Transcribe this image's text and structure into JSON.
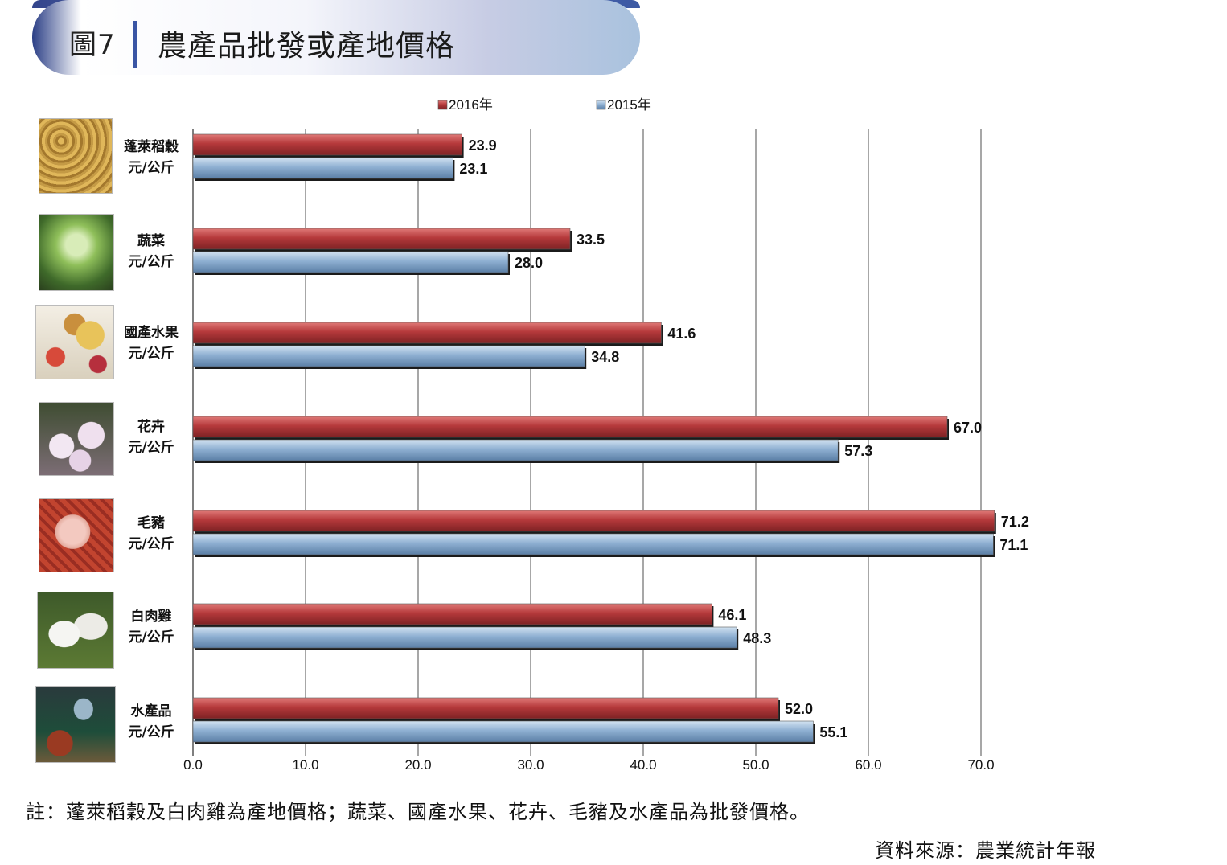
{
  "header": {
    "figure_number": "圖7",
    "title": "農產品批發或產地價格"
  },
  "note": "註：蓬萊稻穀及白肉雞為產地價格；蔬菜、國產水果、花卉、毛豬及水產品為批發價格。",
  "source": "資料來源：農業統計年報",
  "colors": {
    "series_2016": "#b5393b",
    "series_2015": "#8fb0d2",
    "grid": "#8a8a8a"
  },
  "chart_data": {
    "type": "bar",
    "orientation": "horizontal",
    "categories": [
      "蓬萊稻穀",
      "蔬菜",
      "國產水果",
      "花卉",
      "毛豬",
      "白肉雞",
      "水產品"
    ],
    "unit_labels": [
      "元/公斤",
      "元/公斤",
      "元/公斤",
      "元/公斤",
      "元/公斤",
      "元/公斤",
      "元/公斤"
    ],
    "series": [
      {
        "name": "2016年",
        "values": [
          23.9,
          33.5,
          41.6,
          67.0,
          71.2,
          46.1,
          52.0
        ]
      },
      {
        "name": "2015年",
        "values": [
          23.1,
          28.0,
          34.8,
          57.3,
          71.1,
          48.3,
          55.1
        ]
      }
    ],
    "xlim": [
      0,
      70
    ],
    "x_ticks": [
      "0.0",
      "10.0",
      "20.0",
      "30.0",
      "40.0",
      "50.0",
      "60.0",
      "70.0"
    ],
    "grid": true,
    "legend_position": "top"
  }
}
